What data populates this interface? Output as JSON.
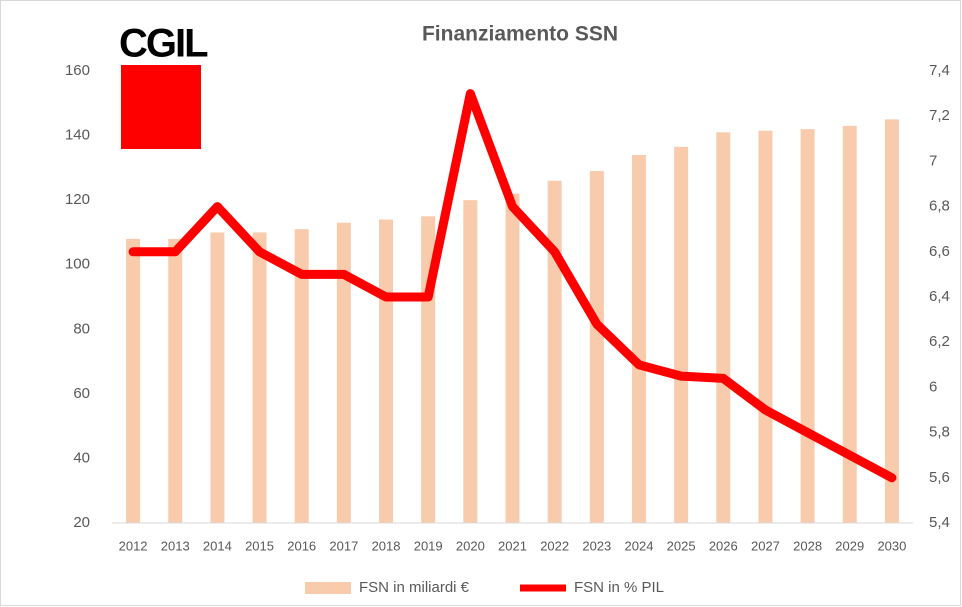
{
  "chart_data": {
    "type": "bar",
    "title": "Finanziamento SSN",
    "logo": "CGIL",
    "categories": [
      "2012",
      "2013",
      "2014",
      "2015",
      "2016",
      "2017",
      "2018",
      "2019",
      "2020",
      "2021",
      "2022",
      "2023",
      "2024",
      "2025",
      "2026",
      "2027",
      "2028",
      "2029",
      "2030"
    ],
    "series": [
      {
        "name": "FSN in miliardi €",
        "type": "bar",
        "color": "#f8cbad",
        "values": [
          108,
          108,
          110,
          110,
          111,
          113,
          114,
          115,
          120,
          122,
          126,
          129,
          134,
          136.5,
          141,
          141.5,
          142,
          143,
          145
        ]
      },
      {
        "name": "FSN in % PIL",
        "type": "line",
        "axis": "y2",
        "color": "#ff0000",
        "values": [
          6.6,
          6.6,
          6.8,
          6.6,
          6.5,
          6.5,
          6.4,
          6.4,
          7.3,
          6.8,
          6.6,
          6.28,
          6.1,
          6.05,
          6.04,
          5.9,
          5.8,
          5.7,
          5.6
        ]
      }
    ],
    "ylim": [
      20,
      160
    ],
    "yticks": [
      20,
      40,
      60,
      80,
      100,
      120,
      140,
      160
    ],
    "y2lim": [
      5.4,
      7.4
    ],
    "y2ticks": [
      {
        "value": 5.4,
        "label": "5,4"
      },
      {
        "value": 5.6,
        "label": "5,6"
      },
      {
        "value": 5.8,
        "label": "5,8"
      },
      {
        "value": 6,
        "label": "6"
      },
      {
        "value": 6.2,
        "label": "6,2"
      },
      {
        "value": 6.4,
        "label": "6,4"
      },
      {
        "value": 6.6,
        "label": "6,6"
      },
      {
        "value": 6.8,
        "label": "6,8"
      },
      {
        "value": 7,
        "label": "7"
      },
      {
        "value": 7.2,
        "label": "7,2"
      },
      {
        "value": 7.4,
        "label": "7,4"
      }
    ],
    "legend": "bottom",
    "grid": false
  }
}
